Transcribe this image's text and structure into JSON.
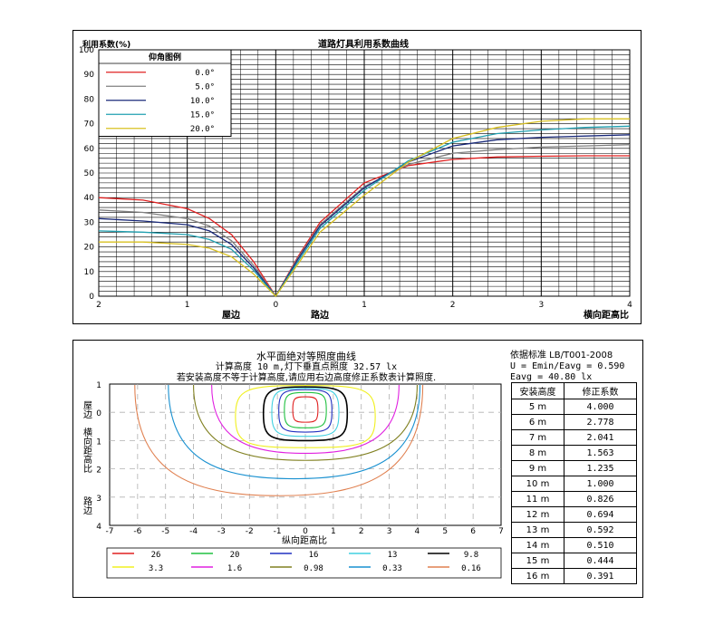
{
  "top_panel": {
    "title": "道路灯具利用系数曲线",
    "ylabel": "利用系数(%)",
    "label_house_side": "屋边",
    "label_road_side": "路边",
    "label_xaxis": "横向距高比",
    "legend_title": "仰角图例",
    "legend": [
      {
        "label": "0.0°",
        "color": "#e02020"
      },
      {
        "label": "5.0°",
        "color": "#808080"
      },
      {
        "label": "10.0°",
        "color": "#1a2a7a"
      },
      {
        "label": "15.0°",
        "color": "#20a0b0"
      },
      {
        "label": "20.0°",
        "color": "#d8c020"
      }
    ]
  },
  "bottom_panel": {
    "title": "水平面绝对等照度曲线",
    "subtitle1": "计算高度 10 m,灯下垂直点照度  32.57 lx",
    "subtitle2": "若安装高度不等于计算高度,请应用右边高度修正系数表计算照度.",
    "ylabel_top": "屋边",
    "ylabel_mid": "横向距高比",
    "ylabel_bottom": "路边",
    "xlabel": "纵向距高比",
    "standard": "依据标准 LB/T001-2008",
    "uniformity": "U = Emin/Eavg = 0.590",
    "eavg": "Eavg = 40.80 lx",
    "table_header": [
      "安装高度",
      "修正系数"
    ],
    "table_rows": [
      [
        "5 m",
        "4.000"
      ],
      [
        "6 m",
        "2.778"
      ],
      [
        "7 m",
        "2.041"
      ],
      [
        "8 m",
        "1.563"
      ],
      [
        "9 m",
        "1.235"
      ],
      [
        "10 m",
        "1.000"
      ],
      [
        "11 m",
        "0.826"
      ],
      [
        "12 m",
        "0.694"
      ],
      [
        "13 m",
        "0.592"
      ],
      [
        "14 m",
        "0.510"
      ],
      [
        "15 m",
        "0.444"
      ],
      [
        "16 m",
        "0.391"
      ]
    ],
    "legend": [
      {
        "label": "26",
        "color": "#e02020"
      },
      {
        "label": "20",
        "color": "#20c040"
      },
      {
        "label": "16",
        "color": "#2030c0"
      },
      {
        "label": "13",
        "color": "#40d0e0"
      },
      {
        "label": "9.8",
        "color": "#000000"
      },
      {
        "label": "3.3",
        "color": "#f0f020"
      },
      {
        "label": "1.6",
        "color": "#e020e0"
      },
      {
        "label": "0.98",
        "color": "#808020"
      },
      {
        "label": "0.33",
        "color": "#1890d0"
      },
      {
        "label": "0.16",
        "color": "#e08050"
      }
    ]
  },
  "chart_data": [
    {
      "type": "line",
      "title": "道路灯具利用系数曲线",
      "ylabel": "利用系数(%)",
      "xlabel": "横向距高比",
      "ylim": [
        0,
        100
      ],
      "xlim": [
        -2,
        4
      ],
      "y_ticks": [
        0,
        10,
        20,
        30,
        40,
        50,
        60,
        70,
        80,
        90,
        100
      ],
      "x_ticks": [
        -2,
        -1,
        0,
        1,
        2,
        3,
        4
      ],
      "x_tick_labels": [
        "2",
        "1",
        "0",
        "1",
        "2",
        "3",
        "4"
      ],
      "grid": true,
      "legend_position": "top-left",
      "x": [
        -2,
        -1.5,
        -1,
        -0.75,
        -0.5,
        -0.25,
        0,
        0.25,
        0.5,
        1,
        1.5,
        2,
        2.5,
        3,
        3.5,
        4
      ],
      "series": [
        {
          "name": "0.0°",
          "color": "#e02020",
          "values": [
            40,
            39,
            35.5,
            31.5,
            25,
            14,
            0,
            16,
            30,
            46,
            53,
            55.5,
            56.5,
            56.8,
            57,
            57
          ]
        },
        {
          "name": "5.0°",
          "color": "#808080",
          "values": [
            35,
            34,
            31.5,
            28.5,
            22.5,
            12.5,
            0,
            15.5,
            29,
            44.5,
            53.5,
            58,
            59.5,
            60.5,
            61,
            61.5
          ]
        },
        {
          "name": "10.0°",
          "color": "#1a2a7a",
          "values": [
            31.5,
            30.5,
            29,
            26.5,
            21,
            11.5,
            0,
            15,
            28.5,
            44,
            54.5,
            61,
            63.5,
            64.5,
            65,
            65.5
          ]
        },
        {
          "name": "15.0°",
          "color": "#20a0b0",
          "values": [
            26.5,
            26,
            25,
            23,
            19,
            10.5,
            0,
            14,
            27.5,
            43,
            55,
            62.5,
            66,
            67.5,
            68.5,
            69
          ]
        },
        {
          "name": "20.0°",
          "color": "#d8c020",
          "values": [
            22,
            22,
            21,
            19.5,
            16,
            9,
            0,
            13,
            26,
            41,
            54.5,
            64,
            68.5,
            71,
            72,
            72
          ]
        }
      ]
    },
    {
      "type": "contour",
      "title": "水平面绝对等照度曲线",
      "xlabel": "纵向距高比",
      "xlim": [
        -7,
        7
      ],
      "x_ticks": [
        -7,
        -6,
        -5,
        -4,
        -3,
        -2,
        -1,
        0,
        1,
        2,
        3,
        4,
        5,
        6,
        7
      ],
      "ylim": [
        -1,
        4
      ],
      "y_ticks": [
        -1,
        0,
        1,
        2,
        3,
        4
      ],
      "y_tick_labels": [
        "1",
        "0",
        "1",
        "2",
        "3",
        "4"
      ],
      "grid": true,
      "legend_position": "bottom",
      "levels": [
        26,
        20,
        16,
        13,
        9.8,
        3.3,
        1.6,
        0.98,
        0.33,
        0.16
      ],
      "contours": [
        {
          "level": 26,
          "color": "#e02020",
          "xmin": -0.45,
          "xmax": 0.45,
          "ymin": -0.55,
          "ymax": 0.35
        },
        {
          "level": 20,
          "color": "#20c040",
          "xmin": -0.75,
          "xmax": 0.75,
          "ymin": -0.7,
          "ymax": 0.55
        },
        {
          "level": 16,
          "color": "#2030c0",
          "xmin": -0.95,
          "xmax": 0.95,
          "ymin": -0.8,
          "ymax": 0.7
        },
        {
          "level": 13,
          "color": "#40d0e0",
          "xmin": -1.2,
          "xmax": 1.2,
          "ymin": -0.85,
          "ymax": 0.85
        },
        {
          "level": 9.8,
          "color": "#000000",
          "xmin": -1.5,
          "xmax": 1.5,
          "ymin": -0.9,
          "ymax": 1.0
        },
        {
          "level": 3.3,
          "color": "#f0f020",
          "xmin": -2.5,
          "xmax": 2.5,
          "ymin": -0.95,
          "ymax": 1.25
        },
        {
          "level": 1.6,
          "color": "#e020e0",
          "xmin": -3.35,
          "xmax": 3.35,
          "ymin": -1.0,
          "ymax": 1.45
        },
        {
          "level": 0.98,
          "color": "#808020",
          "xmin": -4.0,
          "xmax": 4.0,
          "ymin": -1.0,
          "ymax": 1.7
        },
        {
          "level": 0.33,
          "color": "#1890d0",
          "xmin": -4.9,
          "xmax": 4.1,
          "ymin": -1.0,
          "ymax": 2.35
        },
        {
          "level": 0.16,
          "color": "#e08050",
          "xmin": -6.1,
          "xmax": 4.2,
          "ymin": -1.0,
          "ymax": 2.95
        }
      ]
    }
  ]
}
